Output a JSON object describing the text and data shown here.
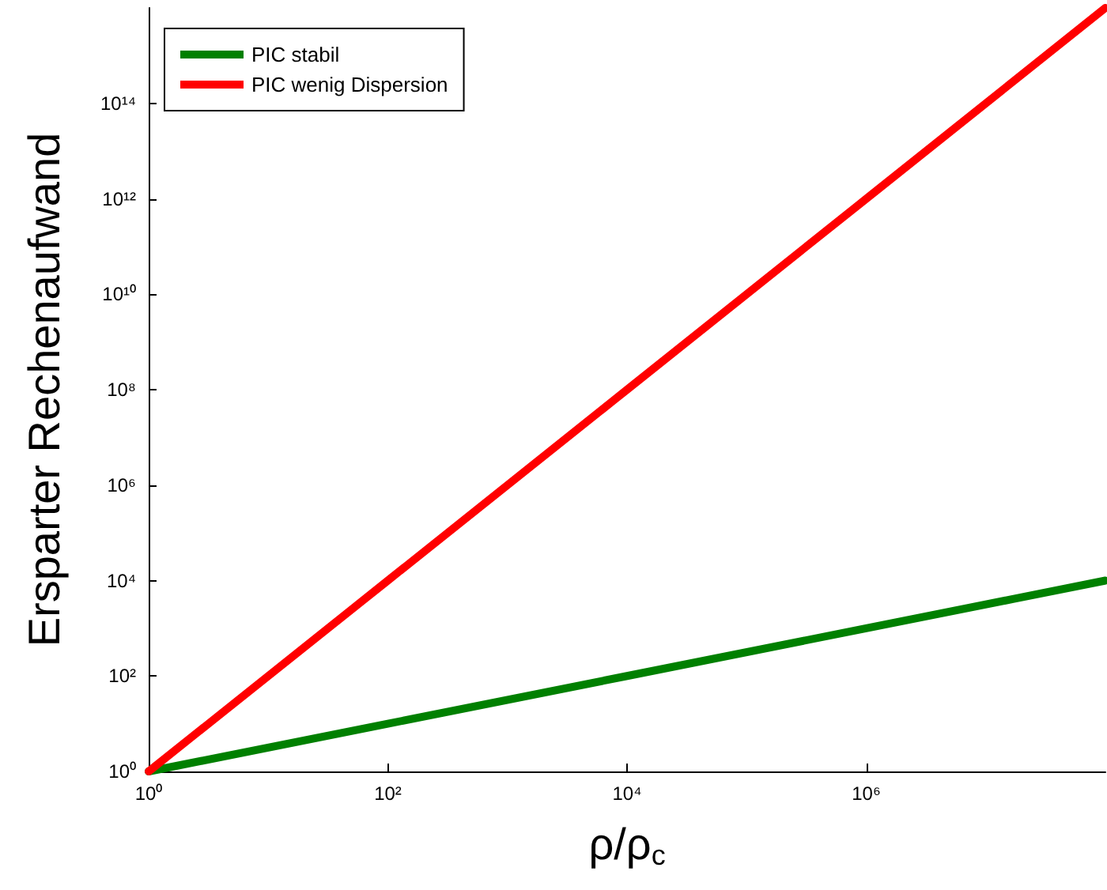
{
  "chart_data": {
    "type": "line",
    "xlabel": "ρ/ρ$_{c}$",
    "ylabel": "Ersparter Rechenaufwand",
    "log": "xy",
    "legend": "top left",
    "marker": "none",
    "line_style": "solid",
    "grid": false,
    "x": [
      1,
      100,
      10000,
      1000000,
      100000000
    ],
    "series": [
      {
        "name": "PIC stabil",
        "color": "#008000",
        "values": [
          1,
          10,
          100,
          1000,
          10000
        ]
      },
      {
        "name": "PIC wenig Dispersion",
        "color": "#ff0000",
        "values": [
          1,
          10000,
          100000000,
          1000000000000,
          10000000000000000
        ]
      }
    ],
    "xlim": [
      1,
      100000000
    ],
    "xticks": [
      {
        "value": 1,
        "label": "10⁰"
      },
      {
        "value": 100,
        "label": "10²"
      },
      {
        "value": 10000,
        "label": "10⁴"
      },
      {
        "value": 1000000,
        "label": "10⁶"
      }
    ],
    "ylim": [
      1,
      10000000000000000
    ],
    "yticks": [
      {
        "value": 1,
        "label": "10⁰"
      },
      {
        "value": 100,
        "label": "10²"
      },
      {
        "value": 10000,
        "label": "10⁴"
      },
      {
        "value": 1000000,
        "label": "10⁶"
      },
      {
        "value": 100000000,
        "label": "10⁸"
      },
      {
        "value": 10000000000,
        "label": "10¹⁰"
      },
      {
        "value": 1000000000000,
        "label": "10¹²"
      },
      {
        "value": 100000000000000,
        "label": "10¹⁴"
      }
    ]
  }
}
